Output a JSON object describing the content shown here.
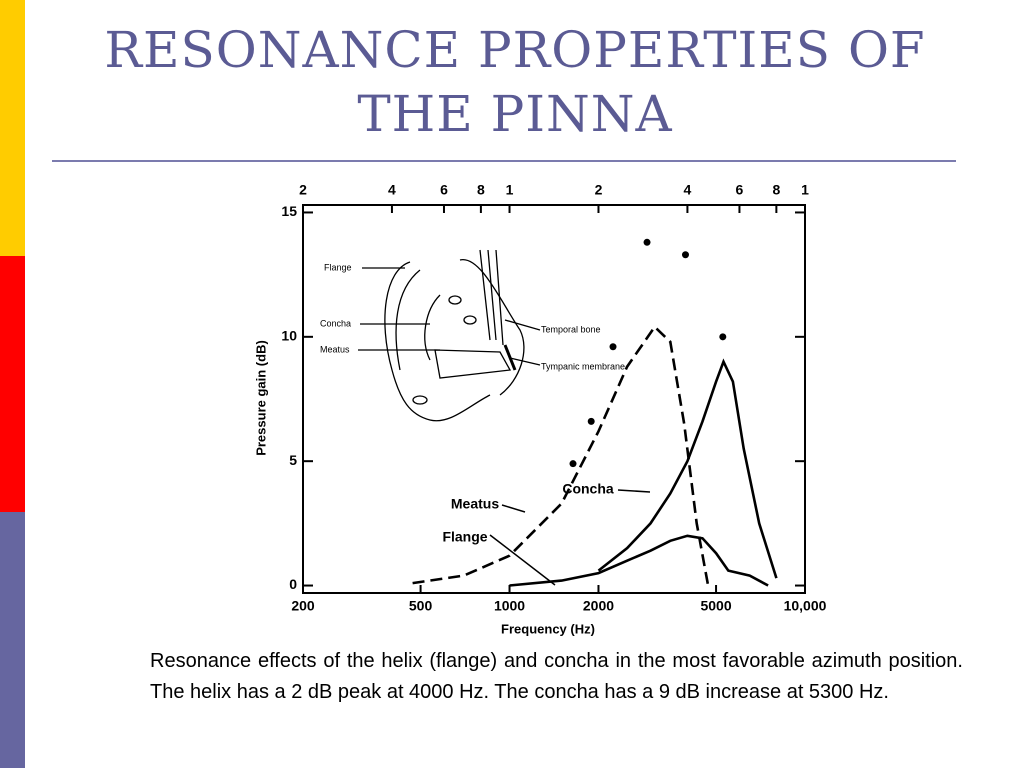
{
  "title": "RESONANCE PROPERTIES OF THE PINNA",
  "chart_data": {
    "type": "line",
    "xlabel": "Frequency (Hz)",
    "ylabel": "Pressure gain (dB)",
    "log_x": true,
    "xlim": [
      200,
      10000
    ],
    "ylim": [
      -0.3,
      15.3
    ],
    "xticks": [
      200,
      500,
      1000,
      2000,
      5000,
      {
        "value": 10000,
        "label": "10,000"
      }
    ],
    "top_xticks": [
      {
        "value": 200,
        "label": "2"
      },
      {
        "value": 400,
        "label": "4"
      },
      {
        "value": 600,
        "label": "6"
      },
      {
        "value": 800,
        "label": "8"
      },
      {
        "value": 1000,
        "label": "1"
      },
      {
        "value": 2000,
        "label": "2"
      },
      {
        "value": 4000,
        "label": "4"
      },
      {
        "value": 6000,
        "label": "6"
      },
      {
        "value": 8000,
        "label": "8"
      },
      {
        "value": 10000,
        "label": "1"
      }
    ],
    "yticks": [
      0,
      5,
      10,
      15
    ],
    "series": [
      {
        "name": "Meatus",
        "color": "#000000",
        "dashed": true,
        "x": [
          470,
          700,
          1000,
          1500,
          2000,
          2500,
          3100,
          3500,
          3900,
          4300,
          4700
        ],
        "values": [
          0.1,
          0.4,
          1.2,
          3.3,
          6.2,
          8.8,
          10.4,
          9.8,
          6.5,
          2.5,
          0
        ]
      },
      {
        "name": "Concha",
        "color": "#000000",
        "dashed": false,
        "x": [
          2000,
          2500,
          3000,
          3500,
          4000,
          4500,
          5000,
          5300,
          5700,
          6200,
          7000,
          8000
        ],
        "values": [
          0.6,
          1.5,
          2.5,
          3.7,
          5,
          6.6,
          8.2,
          9,
          8.2,
          5.5,
          2.5,
          0.3
        ]
      },
      {
        "name": "Flange",
        "color": "#000000",
        "dashed": false,
        "x": [
          1000,
          1500,
          2000,
          2500,
          3000,
          3500,
          4000,
          4500,
          5000,
          5500,
          6500,
          7500
        ],
        "values": [
          0,
          0.2,
          0.5,
          1,
          1.4,
          1.8,
          2,
          1.9,
          1.3,
          0.6,
          0.4,
          0
        ]
      }
    ],
    "points": {
      "color": "#000000",
      "x": [
        1640,
        1890,
        2240,
        2920,
        3940,
        5270
      ],
      "values": [
        4.9,
        6.6,
        9.6,
        13.8,
        13.3,
        10
      ]
    }
  },
  "diagram_labels": [
    "Flange",
    "Concha",
    "Meatus",
    "Temporal bone",
    "Tympanic membrane"
  ],
  "caption": "Resonance effects of the helix (flange) and concha in the most favorable azimuth position.  The helix has a 2 dB peak at 4000 Hz.  The concha has a 9 dB increase at 5300 Hz."
}
